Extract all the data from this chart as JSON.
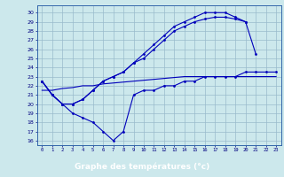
{
  "hours": [
    0,
    1,
    2,
    3,
    4,
    5,
    6,
    7,
    8,
    9,
    10,
    11,
    12,
    13,
    14,
    15,
    16,
    17,
    18,
    19,
    20,
    21,
    22,
    23
  ],
  "line_max": [
    22.5,
    21.0,
    20.0,
    20.0,
    20.5,
    21.5,
    22.5,
    23.0,
    23.5,
    24.5,
    25.5,
    26.5,
    27.5,
    28.5,
    29.0,
    29.5,
    30.0,
    30.0,
    30.0,
    29.5,
    29.0,
    25.5,
    null,
    null
  ],
  "line_curr": [
    22.5,
    21.0,
    20.0,
    20.0,
    20.5,
    21.5,
    22.5,
    23.0,
    23.5,
    24.5,
    25.0,
    26.0,
    27.0,
    28.0,
    28.5,
    29.0,
    29.3,
    29.5,
    29.5,
    29.3,
    29.0,
    null,
    null,
    null
  ],
  "line_min": [
    22.5,
    21.0,
    20.0,
    19.0,
    18.5,
    18.0,
    17.0,
    16.0,
    17.0,
    21.0,
    21.5,
    21.5,
    22.0,
    22.0,
    22.5,
    22.5,
    23.0,
    23.0,
    23.0,
    23.0,
    23.5,
    23.5,
    23.5,
    23.5
  ],
  "line_avg": [
    21.5,
    21.5,
    21.7,
    21.8,
    22.0,
    22.0,
    22.2,
    22.3,
    22.4,
    22.5,
    22.6,
    22.7,
    22.8,
    22.9,
    23.0,
    23.0,
    23.0,
    23.0,
    23.0,
    23.0,
    23.0,
    23.0,
    23.0,
    23.0
  ],
  "ylim": [
    15.5,
    30.8
  ],
  "yticks": [
    16,
    17,
    18,
    19,
    20,
    21,
    22,
    23,
    24,
    25,
    26,
    27,
    28,
    29,
    30
  ],
  "xlabel": "Graphe des températures (°c)",
  "bg_color": "#cce8ec",
  "line_color": "#0000bb",
  "grid_color": "#99bbcc",
  "label_bg": "#1133aa",
  "label_fg": "#ffffff"
}
